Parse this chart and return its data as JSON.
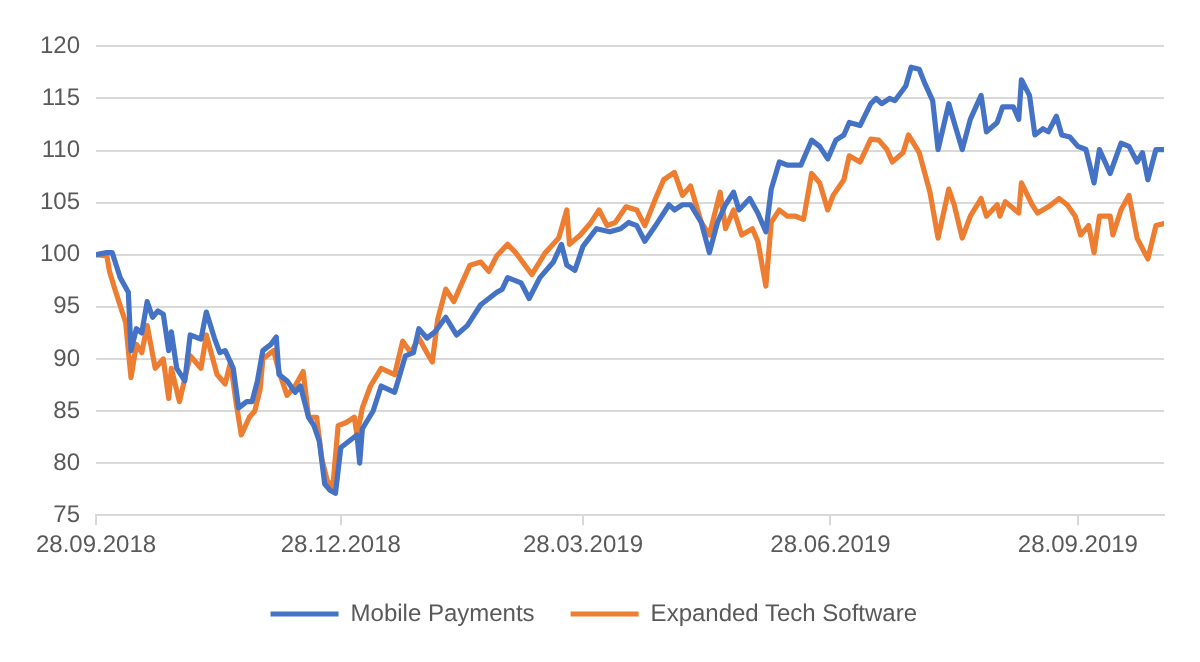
{
  "chart_data": {
    "type": "line",
    "xlim": [
      "2018-09-28",
      "2019-10-30"
    ],
    "ylim": [
      75,
      120
    ],
    "yticks": [
      75,
      80,
      85,
      90,
      95,
      100,
      105,
      110,
      115,
      120
    ],
    "xticks": [
      {
        "value": "2018-09-28",
        "label": "28.09.2018"
      },
      {
        "value": "2018-12-28",
        "label": "28.12.2018"
      },
      {
        "value": "2019-03-28",
        "label": "28.03.2019"
      },
      {
        "value": "2019-06-28",
        "label": "28.06.2019"
      },
      {
        "value": "2019-09-28",
        "label": "28.09.2019"
      }
    ],
    "grid": "y",
    "legend": "bottom",
    "marker": "none",
    "line_style": "solid",
    "series": [
      {
        "name": "Mobile Payments",
        "color": "#4472c4",
        "x": [
          "2018-09-28",
          "2018-10-02",
          "2018-10-04",
          "2018-10-07",
          "2018-10-10",
          "2018-10-11",
          "2018-10-13",
          "2018-10-15",
          "2018-10-17",
          "2018-10-19",
          "2018-10-21",
          "2018-10-23",
          "2018-10-25",
          "2018-10-26",
          "2018-10-28",
          "2018-10-31",
          "2018-11-02",
          "2018-11-06",
          "2018-11-08",
          "2018-11-11",
          "2018-11-13",
          "2018-11-15",
          "2018-11-18",
          "2018-11-20",
          "2018-11-23",
          "2018-11-25",
          "2018-11-27",
          "2018-11-29",
          "2018-12-02",
          "2018-12-04",
          "2018-12-05",
          "2018-12-08",
          "2018-12-11",
          "2018-12-13",
          "2018-12-16",
          "2018-12-18",
          "2018-12-20",
          "2018-12-22",
          "2018-12-24",
          "2018-12-26",
          "2018-12-28",
          "2018-12-31",
          "2019-01-03",
          "2019-01-04",
          "2019-01-05",
          "2019-01-09",
          "2019-01-12",
          "2019-01-17",
          "2019-01-21",
          "2019-01-24",
          "2019-01-26",
          "2019-01-29",
          "2019-02-01",
          "2019-02-05",
          "2019-02-09",
          "2019-02-13",
          "2019-02-18",
          "2019-02-21",
          "2019-02-24",
          "2019-02-26",
          "2019-02-28",
          "2019-03-05",
          "2019-03-08",
          "2019-03-12",
          "2019-03-17",
          "2019-03-20",
          "2019-03-22",
          "2019-03-25",
          "2019-03-28",
          "2019-04-02",
          "2019-04-07",
          "2019-04-11",
          "2019-04-14",
          "2019-04-17",
          "2019-04-20",
          "2019-04-24",
          "2019-04-29",
          "2019-05-01",
          "2019-05-04",
          "2019-05-07",
          "2019-05-11",
          "2019-05-14",
          "2019-05-17",
          "2019-05-20",
          "2019-05-23",
          "2019-05-25",
          "2019-05-29",
          "2019-06-01",
          "2019-06-04",
          "2019-06-06",
          "2019-06-09",
          "2019-06-12",
          "2019-06-17",
          "2019-06-21",
          "2019-06-24",
          "2019-06-27",
          "2019-06-30",
          "2019-07-03",
          "2019-07-05",
          "2019-07-09",
          "2019-07-13",
          "2019-07-15",
          "2019-07-17",
          "2019-07-20",
          "2019-07-22",
          "2019-07-26",
          "2019-07-28",
          "2019-07-31",
          "2019-08-02",
          "2019-08-05",
          "2019-08-07",
          "2019-08-11",
          "2019-08-13",
          "2019-08-16",
          "2019-08-19",
          "2019-08-23",
          "2019-08-25",
          "2019-08-29",
          "2019-08-31",
          "2019-09-04",
          "2019-09-06",
          "2019-09-07",
          "2019-09-10",
          "2019-09-12",
          "2019-09-15",
          "2019-09-17",
          "2019-09-20",
          "2019-09-22",
          "2019-09-25",
          "2019-09-28",
          "2019-10-01",
          "2019-10-04",
          "2019-10-06",
          "2019-10-10",
          "2019-10-14",
          "2019-10-17",
          "2019-10-20",
          "2019-10-22",
          "2019-10-24",
          "2019-10-27",
          "2019-10-30"
        ],
        "values": [
          100,
          100.2,
          100.2,
          97.8,
          96.4,
          90.8,
          92.9,
          92.5,
          95.5,
          94,
          94.6,
          94.3,
          90.8,
          92.6,
          89.1,
          87.9,
          92.3,
          91.9,
          94.5,
          92,
          90.6,
          90.8,
          89.1,
          85.3,
          85.9,
          85.9,
          87.9,
          90.8,
          91.4,
          92.1,
          88.5,
          87.9,
          86.8,
          87.4,
          84.4,
          83.6,
          82.1,
          78,
          77.4,
          77.1,
          81.5,
          82.1,
          82.7,
          80,
          83.3,
          85,
          87.4,
          86.8,
          90.3,
          90.6,
          92.9,
          92,
          92.6,
          94,
          92.3,
          93.2,
          95.2,
          95.8,
          96.4,
          96.7,
          97.8,
          97.3,
          95.8,
          97.8,
          99.3,
          101,
          99,
          98.5,
          100.8,
          102.5,
          102.2,
          102.5,
          103.1,
          102.8,
          101.3,
          102.8,
          104.8,
          104.3,
          104.8,
          104.8,
          103.1,
          100.2,
          103.1,
          104.8,
          106,
          104.3,
          105.4,
          104,
          102.2,
          106.3,
          108.9,
          108.6,
          108.6,
          111,
          110.4,
          109.2,
          111,
          111.5,
          112.7,
          112.4,
          114.5,
          115,
          114.5,
          115,
          114.8,
          116.2,
          118,
          117.8,
          116.5,
          114.8,
          110.1,
          114.5,
          112.7,
          110.1,
          113,
          115.3,
          111.8,
          112.7,
          114.2,
          114.2,
          113,
          116.8,
          115.3,
          111.5,
          112.1,
          111.8,
          113.3,
          111.5,
          111.3,
          110.4,
          110.1,
          106.9,
          110.1,
          107.8,
          110.7,
          110.4,
          108.9,
          109.8,
          107.2,
          110.1,
          110.1
        ]
      },
      {
        "name": "Expanded Tech Software",
        "color": "#ed7d31",
        "x": [
          "2018-09-28",
          "2018-10-02",
          "2018-10-03",
          "2018-10-05",
          "2018-10-09",
          "2018-10-11",
          "2018-10-13",
          "2018-10-15",
          "2018-10-17",
          "2018-10-20",
          "2018-10-23",
          "2018-10-25",
          "2018-10-26",
          "2018-10-29",
          "2018-11-02",
          "2018-11-06",
          "2018-11-08",
          "2018-11-12",
          "2018-11-15",
          "2018-11-17",
          "2018-11-19",
          "2018-11-21",
          "2018-11-24",
          "2018-11-26",
          "2018-11-28",
          "2018-11-29",
          "2018-12-03",
          "2018-12-05",
          "2018-12-08",
          "2018-12-11",
          "2018-12-14",
          "2018-12-16",
          "2018-12-19",
          "2018-12-21",
          "2018-12-23",
          "2018-12-25",
          "2018-12-27",
          "2018-12-30",
          "2019-01-02",
          "2019-01-03",
          "2019-01-05",
          "2019-01-08",
          "2019-01-12",
          "2019-01-17",
          "2019-01-20",
          "2019-01-23",
          "2019-01-26",
          "2019-01-29",
          "2019-01-31",
          "2019-02-02",
          "2019-02-05",
          "2019-02-08",
          "2019-02-10",
          "2019-02-14",
          "2019-02-18",
          "2019-02-21",
          "2019-02-24",
          "2019-02-28",
          "2019-03-03",
          "2019-03-09",
          "2019-03-14",
          "2019-03-19",
          "2019-03-22",
          "2019-03-23",
          "2019-03-27",
          "2019-03-31",
          "2019-04-03",
          "2019-04-06",
          "2019-04-09",
          "2019-04-13",
          "2019-04-17",
          "2019-04-20",
          "2019-04-24",
          "2019-04-27",
          "2019-05-01",
          "2019-05-04",
          "2019-05-07",
          "2019-05-11",
          "2019-05-14",
          "2019-05-18",
          "2019-05-20",
          "2019-05-23",
          "2019-05-26",
          "2019-05-30",
          "2019-06-01",
          "2019-06-04",
          "2019-06-06",
          "2019-06-09",
          "2019-06-12",
          "2019-06-15",
          "2019-06-18",
          "2019-06-21",
          "2019-06-24",
          "2019-06-27",
          "2019-06-29",
          "2019-07-03",
          "2019-07-05",
          "2019-07-09",
          "2019-07-13",
          "2019-07-16",
          "2019-07-19",
          "2019-07-21",
          "2019-07-25",
          "2019-07-27",
          "2019-07-31",
          "2019-08-04",
          "2019-08-07",
          "2019-08-11",
          "2019-08-13",
          "2019-08-16",
          "2019-08-19",
          "2019-08-23",
          "2019-08-25",
          "2019-08-29",
          "2019-08-30",
          "2019-09-01",
          "2019-09-06",
          "2019-09-07",
          "2019-09-11",
          "2019-09-13",
          "2019-09-17",
          "2019-09-21",
          "2019-09-24",
          "2019-09-27",
          "2019-09-29",
          "2019-10-02",
          "2019-10-04",
          "2019-10-06",
          "2019-10-10",
          "2019-10-11",
          "2019-10-14",
          "2019-10-17",
          "2019-10-20",
          "2019-10-24",
          "2019-10-27",
          "2019-10-30"
        ],
        "values": [
          100,
          99.9,
          98.4,
          96.7,
          93.5,
          88.2,
          91.4,
          90.6,
          93.2,
          89.1,
          90,
          86.2,
          89.1,
          85.9,
          90.3,
          89.1,
          92.3,
          88.5,
          87.6,
          89.7,
          85.9,
          82.7,
          84.4,
          85,
          87.1,
          90,
          90.8,
          88.8,
          86.5,
          87.4,
          88.8,
          84.4,
          84.4,
          80.3,
          78.3,
          77.7,
          83.6,
          83.9,
          84.4,
          82.7,
          85.3,
          87.4,
          89.1,
          88.5,
          91.7,
          90.6,
          92,
          90.6,
          89.7,
          93.8,
          96.7,
          95.5,
          96.7,
          99,
          99.3,
          98.4,
          99.9,
          101,
          100.2,
          98.1,
          100.2,
          101.6,
          104.3,
          101,
          101.9,
          103.1,
          104.3,
          102.8,
          103.1,
          104.6,
          104.3,
          102.8,
          105.4,
          107.2,
          107.9,
          105.7,
          106.6,
          103.1,
          101.9,
          106,
          102.5,
          104.3,
          101.9,
          102.5,
          101.3,
          97,
          103.1,
          104.3,
          103.7,
          103.7,
          103.4,
          107.8,
          106.9,
          104.3,
          105.7,
          107.2,
          109.5,
          108.9,
          111.1,
          111,
          110.1,
          108.9,
          109.8,
          111.5,
          109.8,
          106,
          101.6,
          106.3,
          104.8,
          101.6,
          103.7,
          105.4,
          103.7,
          104.8,
          103.7,
          105.1,
          104,
          106.9,
          104.8,
          104,
          104.6,
          105.4,
          104.8,
          103.7,
          101.9,
          102.8,
          100.2,
          103.7,
          103.7,
          101.9,
          104.3,
          105.7,
          101.6,
          99.6,
          102.8,
          103
        ]
      }
    ]
  }
}
